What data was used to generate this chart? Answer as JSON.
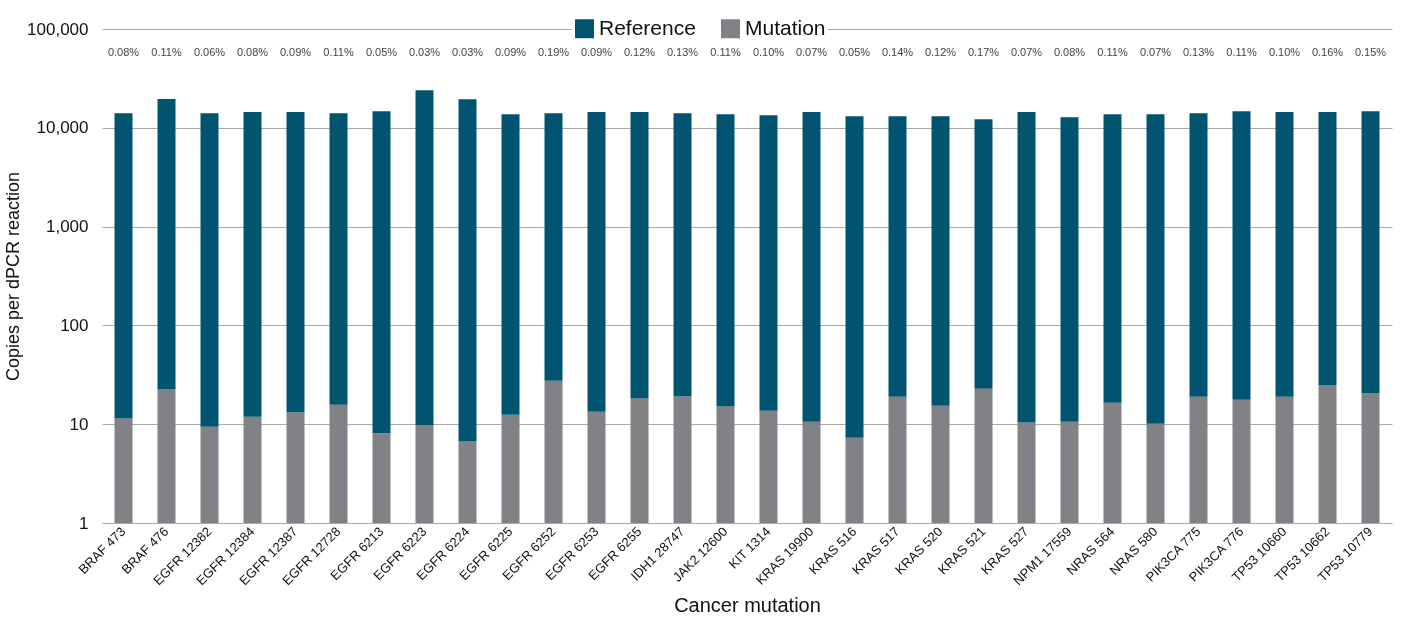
{
  "chart_data": {
    "type": "bar",
    "xlabel": "Cancer mutation",
    "ylabel": "Copies per dPCR reaction",
    "categories": [
      "BRAF 473",
      "BRAF 476",
      "EGFR 12382",
      "EGFR 12384",
      "EGFR 12387",
      "EGFR 12728",
      "EGFR 6213",
      "EGFR 6223",
      "EGFR 6224",
      "EGFR 6225",
      "EGFR 6252",
      "EGFR 6253",
      "EGFR 6255",
      "IDH1 28747",
      "JAK2 12600",
      "KIT 1314",
      "KRAS 19900",
      "KRAS 516",
      "KRAS 517",
      "KRAS 520",
      "KRAS 521",
      "KRAS 527",
      "NPM1 17559",
      "NRAS 564",
      "NRAS 580",
      "PIK3CA 775",
      "PIK3CA 776",
      "TP53 10660",
      "TP53 10662",
      "TP53 10779"
    ],
    "stacked": true,
    "series": [
      {
        "name": "Mutation",
        "color": "#808285",
        "values": [
          11.4,
          22.4,
          9.4,
          11.9,
          13.2,
          15.7,
          8.1,
          9.7,
          6.7,
          12.5,
          27.6,
          13.4,
          18.2,
          19.1,
          15.1,
          13.7,
          10.6,
          7.3,
          19.0,
          15.4,
          22.9,
          10.4,
          10.6,
          16.5,
          10.1,
          19.0,
          17.7,
          19.0,
          25.0,
          20.7
        ]
      },
      {
        "name": "Reference",
        "color": "#00546f",
        "values": [
          14000,
          19500,
          14000,
          14400,
          14400,
          14000,
          14700,
          24000,
          19500,
          13700,
          14000,
          14400,
          14400,
          14000,
          13700,
          13400,
          14400,
          13100,
          13100,
          13100,
          12200,
          14400,
          12800,
          13700,
          13700,
          14000,
          14700,
          14400,
          14400,
          14700
        ]
      }
    ],
    "log": "y",
    "ylim": [
      1,
      100000
    ],
    "yticks": [
      1,
      10,
      100,
      {
        "value": 1000,
        "label": "1,000"
      },
      {
        "value": 10000,
        "label": "10,000"
      },
      {
        "value": 100000,
        "label": "100,000"
      }
    ],
    "grid": "y",
    "legend": "top",
    "annotations": [
      "0.08%",
      "0.11%",
      "0.06%",
      "0.08%",
      "0.09%",
      "0.11%",
      "0.05%",
      "0.03%",
      "0.03%",
      "0.09%",
      "0.19%",
      "0.09%",
      "0.12%",
      "0.13%",
      "0.11%",
      "0.10%",
      "0.07%",
      "0.05%",
      "0.14%",
      "0.12%",
      "0.17%",
      "0.07%",
      "0.08%",
      "0.11%",
      "0.07%",
      "0.13%",
      "0.11%",
      "0.10%",
      "0.16%",
      "0.15%"
    ]
  }
}
